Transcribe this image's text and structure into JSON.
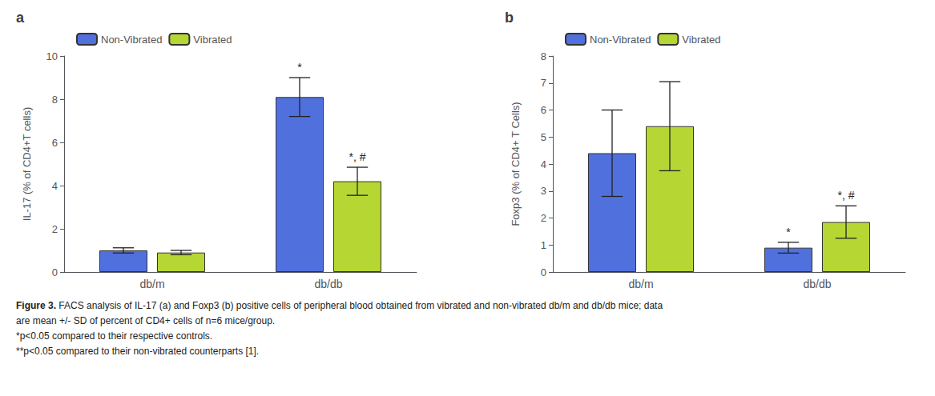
{
  "chart_data": [
    {
      "type": "bar",
      "title": "a",
      "ylabel": "IL-17 (% of CD4+T cells)",
      "categories": [
        "db/m",
        "db/db"
      ],
      "series": [
        {
          "name": "Non-Vibrated",
          "values": [
            1.0,
            8.1
          ],
          "errors": [
            0.12,
            0.9
          ],
          "annotations": [
            null,
            "*"
          ]
        },
        {
          "name": "Vibrated",
          "values": [
            0.9,
            4.2
          ],
          "errors": [
            0.1,
            0.65
          ],
          "annotations": [
            null,
            "*, #"
          ]
        }
      ],
      "ylim": [
        0,
        10
      ],
      "yticks": [
        0,
        2,
        4,
        6,
        8,
        10
      ],
      "grid": false,
      "legend": "upper left"
    },
    {
      "type": "bar",
      "title": "b",
      "ylabel": "Foxp3 (% of CD4+ T Cells)",
      "categories": [
        "db/m",
        "db/db"
      ],
      "series": [
        {
          "name": "Non-Vibrated",
          "values": [
            4.4,
            0.9
          ],
          "errors": [
            1.6,
            0.2
          ],
          "annotations": [
            null,
            "*"
          ]
        },
        {
          "name": "Vibrated",
          "values": [
            5.4,
            1.85
          ],
          "errors": [
            1.65,
            0.6
          ],
          "annotations": [
            null,
            "*, #"
          ]
        }
      ],
      "ylim": [
        0,
        8
      ],
      "yticks": [
        0,
        1,
        2,
        3,
        4,
        5,
        6,
        7,
        8
      ],
      "grid": false,
      "legend": "upper left"
    }
  ],
  "caption": {
    "label": "Figure 3.",
    "lines": [
      " FACS analysis of IL-17 (a) and Foxp3 (b) positive cells of peripheral blood obtained from vibrated and non-vibrated db/m and db/db mice; data",
      "are mean +/- SD of percent of CD4+ cells of n=6 mice/group.",
      "*p<0.05 compared to their respective controls.",
      "**p<0.05 compared to their non-vibrated counterparts [1]."
    ]
  }
}
